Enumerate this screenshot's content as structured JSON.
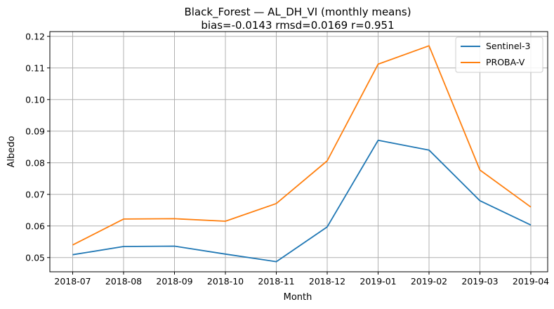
{
  "chart_data": {
    "type": "line",
    "title": "Black_Forest — AL_DH_VI (monthly means)",
    "subtitle": "bias=-0.0143  rmsd=0.0169  r=0.951",
    "xlabel": "Month",
    "ylabel": "Albedo",
    "x": [
      "2018-07",
      "2018-08",
      "2018-09",
      "2018-10",
      "2018-11",
      "2018-12",
      "2019-01",
      "2019-02",
      "2019-03",
      "2019-04"
    ],
    "ylim": [
      0.0455,
      0.1215
    ],
    "yticks": [
      "0.05",
      "0.06",
      "0.07",
      "0.08",
      "0.09",
      "0.10",
      "0.11",
      "0.12"
    ],
    "grid": true,
    "legend_position": "top-right",
    "series": [
      {
        "name": "Sentinel-3",
        "color": "#1f77b4",
        "values": [
          0.0509,
          0.0535,
          0.0536,
          0.0511,
          0.0487,
          0.0597,
          0.0871,
          0.084,
          0.068,
          0.0603
        ]
      },
      {
        "name": "PROBA-V",
        "color": "#ff7f0e",
        "values": [
          0.054,
          0.0622,
          0.0623,
          0.0615,
          0.0671,
          0.0806,
          0.1112,
          0.117,
          0.0777,
          0.066
        ]
      }
    ]
  }
}
